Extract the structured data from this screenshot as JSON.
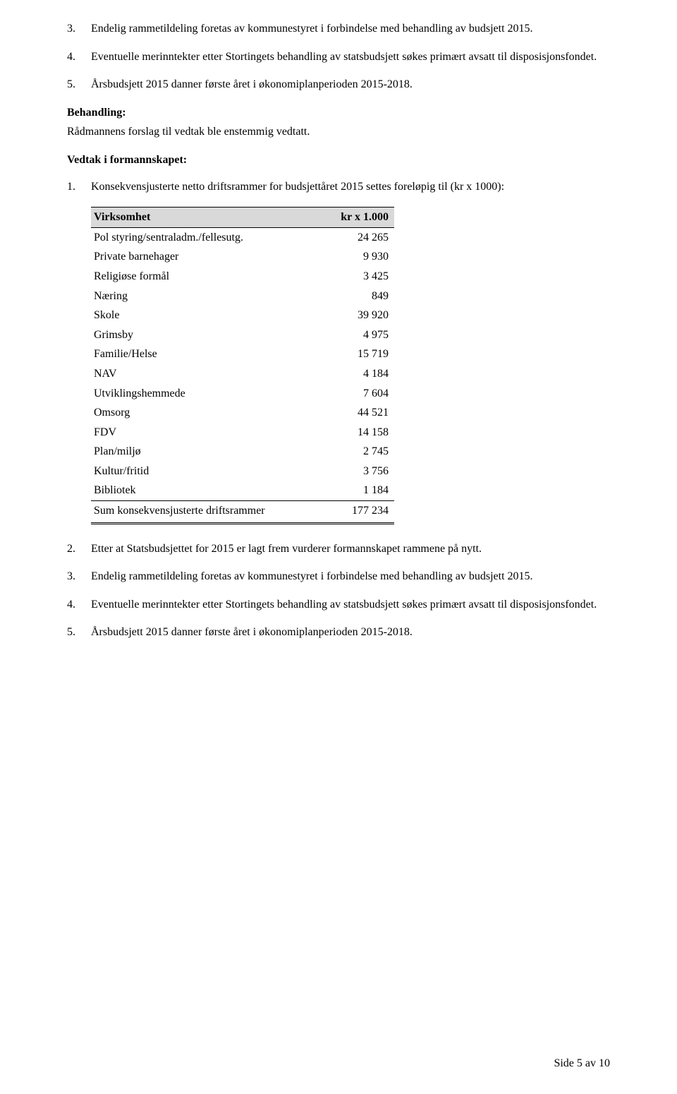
{
  "list_top": [
    {
      "num": "3.",
      "text": "Endelig rammetildeling foretas av kommunestyret i forbindelse med behandling av budsjett 2015."
    },
    {
      "num": "4.",
      "text": "Eventuelle merinntekter etter Stortingets behandling av statsbudsjett søkes primært avsatt til disposisjonsfondet."
    },
    {
      "num": "5.",
      "text": "Årsbudsjett 2015 danner første året i økonomiplanperioden 2015-2018."
    }
  ],
  "behandling_heading": "Behandling:",
  "behandling_text": "Rådmannens forslag til vedtak ble enstemmig vedtatt.",
  "vedtak_heading": "Vedtak i formannskapet:",
  "list_mid_1": {
    "num": "1.",
    "text": "Konsekvensjusterte netto driftsrammer for budsjettåret 2015 settes foreløpig til (kr x 1000):"
  },
  "table": {
    "header": {
      "col1": "Virksomhet",
      "col2": "kr x 1.000"
    },
    "rows": [
      {
        "label": "Pol styring/sentraladm./fellesutg.",
        "value": "24 265"
      },
      {
        "label": "Private barnehager",
        "value": "9 930"
      },
      {
        "label": "Religiøse formål",
        "value": "3 425"
      },
      {
        "label": "Næring",
        "value": "849"
      },
      {
        "label": "Skole",
        "value": "39 920"
      },
      {
        "label": "Grimsby",
        "value": "4 975"
      },
      {
        "label": "Familie/Helse",
        "value": "15 719"
      },
      {
        "label": "NAV",
        "value": "4 184"
      },
      {
        "label": "Utviklingshemmede",
        "value": "7 604"
      },
      {
        "label": "Omsorg",
        "value": "44 521"
      },
      {
        "label": "FDV",
        "value": "14 158"
      },
      {
        "label": "Plan/miljø",
        "value": "2 745"
      },
      {
        "label": "Kultur/fritid",
        "value": "3 756"
      },
      {
        "label": "Bibliotek",
        "value": "1 184"
      }
    ],
    "sum": {
      "label": "Sum konsekvensjusterte driftsrammer",
      "value": "177 234"
    }
  },
  "list_bottom": [
    {
      "num": "2.",
      "text": "Etter at Statsbudsjettet for 2015 er lagt frem vurderer formannskapet rammene på nytt."
    },
    {
      "num": "3.",
      "text": "Endelig rammetildeling foretas av kommunestyret i forbindelse med behandling av budsjett 2015."
    },
    {
      "num": "4.",
      "text": "Eventuelle merinntekter etter Stortingets behandling av statsbudsjett søkes primært avsatt til disposisjonsfondet."
    },
    {
      "num": "5.",
      "text": "Årsbudsjett 2015 danner første året i økonomiplanperioden 2015-2018."
    }
  ],
  "footer": "Side 5 av 10"
}
